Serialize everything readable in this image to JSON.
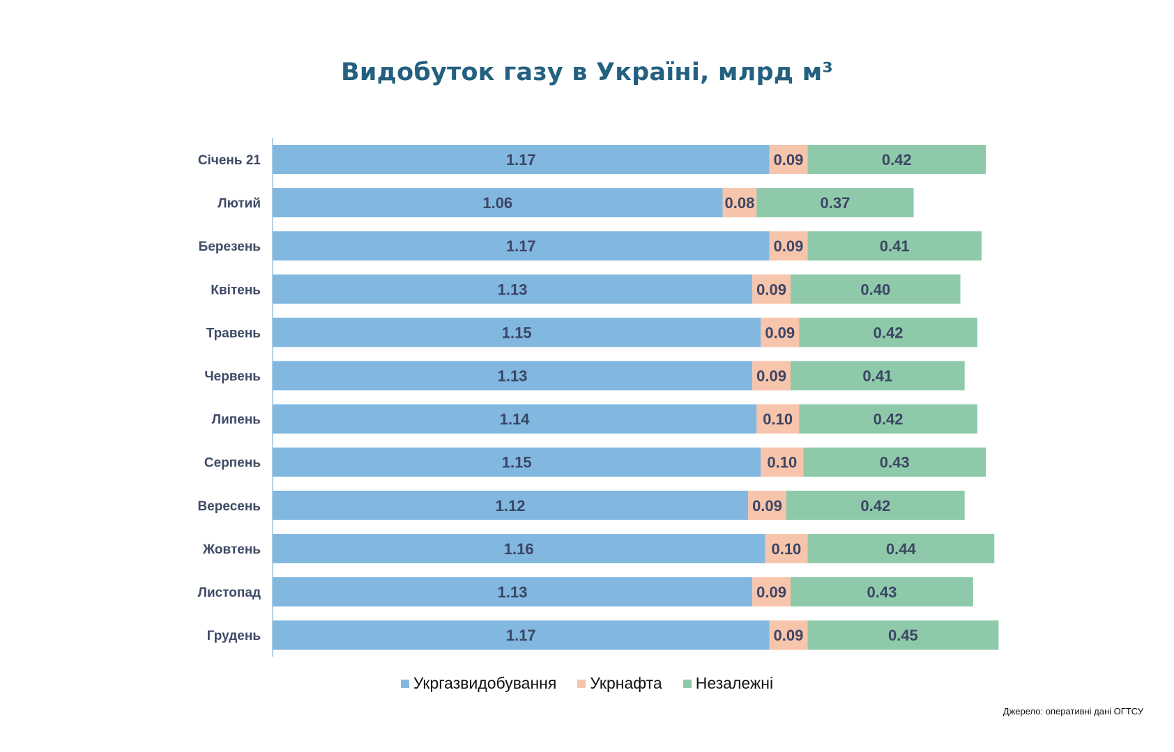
{
  "chart_data": {
    "type": "bar",
    "orientation": "horizontal",
    "stacked": true,
    "title": "Видобуток газу в Україні, млрд м³",
    "categories": [
      "Січень 21",
      "Лютий",
      "Березень",
      "Квітень",
      "Травень",
      "Червень",
      "Липень",
      "Серпень",
      "Вересень",
      "Жовтень",
      "Листопад",
      "Грудень"
    ],
    "series": [
      {
        "name": "Укргазвидобування",
        "color": "#82b8e0",
        "values": [
          1.17,
          1.06,
          1.17,
          1.13,
          1.15,
          1.13,
          1.14,
          1.15,
          1.12,
          1.16,
          1.13,
          1.17
        ]
      },
      {
        "name": "Укрнафта",
        "color": "#f7c4ac",
        "values": [
          0.09,
          0.08,
          0.09,
          0.09,
          0.09,
          0.09,
          0.1,
          0.1,
          0.09,
          0.1,
          0.09,
          0.09
        ]
      },
      {
        "name": "Незалежні",
        "color": "#8ecaaa",
        "values": [
          0.42,
          0.37,
          0.41,
          0.4,
          0.42,
          0.41,
          0.42,
          0.43,
          0.42,
          0.44,
          0.43,
          0.45
        ]
      }
    ],
    "xlim": [
      0,
      1.75
    ],
    "grid": false,
    "legend": "bottom"
  },
  "source": "Джерело: оперативні дані ОГТСУ"
}
